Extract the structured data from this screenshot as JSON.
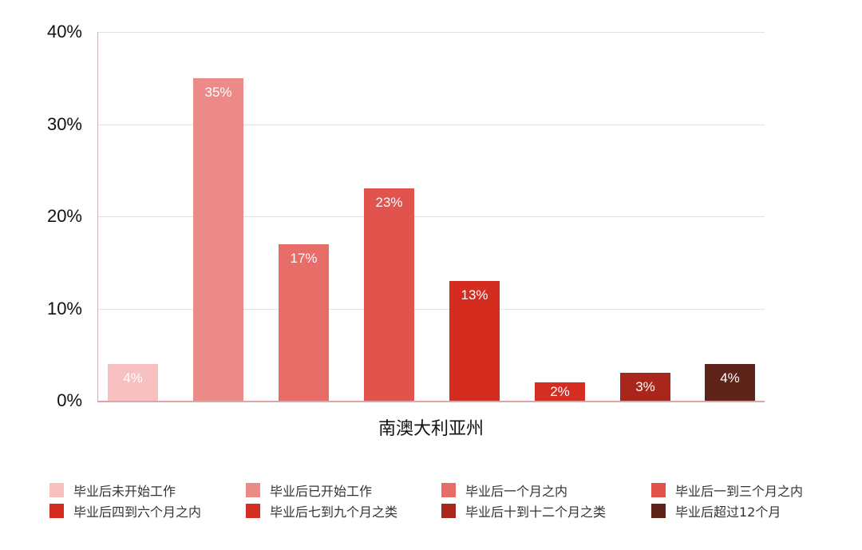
{
  "chart_data": {
    "type": "bar",
    "title": "",
    "xlabel": "南澳大利亚州",
    "ylabel": "",
    "ylim": [
      0,
      40
    ],
    "yticks": [
      "0%",
      "10%",
      "20%",
      "30%",
      "40%"
    ],
    "grid": true,
    "legend_position": "bottom",
    "categories": [
      "南澳大利亚州"
    ],
    "series": [
      {
        "name": "毕业后未开始工作",
        "value": 4,
        "label": "4%",
        "color": "#f7c1c1"
      },
      {
        "name": "毕业后已开始工作",
        "value": 35,
        "label": "35%",
        "color": "#ec8a88"
      },
      {
        "name": "毕业后一个月之内",
        "value": 17,
        "label": "17%",
        "color": "#e86c68"
      },
      {
        "name": "毕业后一到三个月之内",
        "value": 23,
        "label": "23%",
        "color": "#e1544e"
      },
      {
        "name": "毕业后四到六个月之内",
        "value": 13,
        "label": "13%",
        "color": "#d52c20"
      },
      {
        "name": "毕业后七到九个月之类",
        "value": 2,
        "label": "2%",
        "color": "#d42d22"
      },
      {
        "name": "毕业后十到十二个月之类",
        "value": 3,
        "label": "3%",
        "color": "#a8261c"
      },
      {
        "name": "毕业后超过12个月",
        "value": 4,
        "label": "4%",
        "color": "#5e2419"
      }
    ]
  }
}
